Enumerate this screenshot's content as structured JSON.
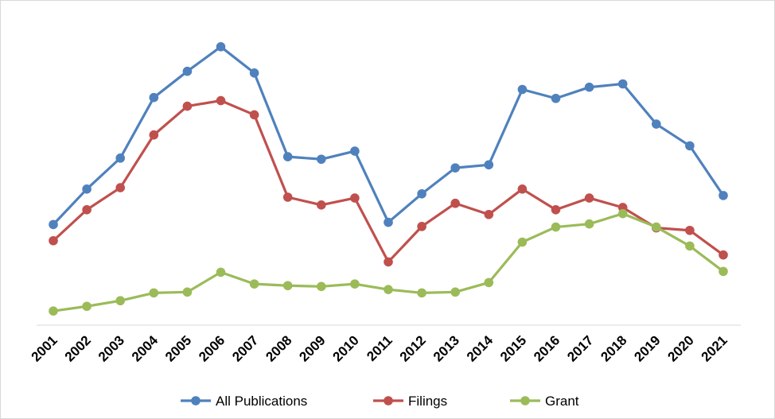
{
  "chart_data": {
    "type": "line",
    "title": "",
    "xlabel": "",
    "ylabel": "",
    "ylim": [
      0,
      100
    ],
    "grid": false,
    "legend_position": "bottom",
    "categories": [
      "2001",
      "2002",
      "2003",
      "2004",
      "2005",
      "2006",
      "2007",
      "2008",
      "2009",
      "2010",
      "2011",
      "2012",
      "2013",
      "2014",
      "2015",
      "2016",
      "2017",
      "2018",
      "2019",
      "2020",
      "2021"
    ],
    "series": [
      {
        "name": "All Publications",
        "color": "#4f81bd",
        "values": [
          35.5,
          48.2,
          59.3,
          81.0,
          90.4,
          99.2,
          89.8,
          59.8,
          58.9,
          61.8,
          36.3,
          46.5,
          55.8,
          56.9,
          83.9,
          80.7,
          84.7,
          85.9,
          71.5,
          63.7,
          45.9
        ]
      },
      {
        "name": "Filings",
        "color": "#c0504d",
        "values": [
          29.7,
          40.8,
          48.7,
          67.6,
          77.9,
          79.9,
          74.8,
          45.3,
          42.5,
          45.0,
          22.1,
          34.8,
          43.1,
          39.1,
          48.2,
          40.8,
          45.0,
          41.6,
          34.3,
          33.4,
          24.6
        ]
      },
      {
        "name": "Grant",
        "color": "#9bbb59",
        "values": [
          4.5,
          6.2,
          8.2,
          11.0,
          11.3,
          18.4,
          14.2,
          13.6,
          13.3,
          14.2,
          12.2,
          11.0,
          11.3,
          14.7,
          29.2,
          34.6,
          35.7,
          39.4,
          34.6,
          27.8,
          18.7
        ]
      }
    ]
  }
}
